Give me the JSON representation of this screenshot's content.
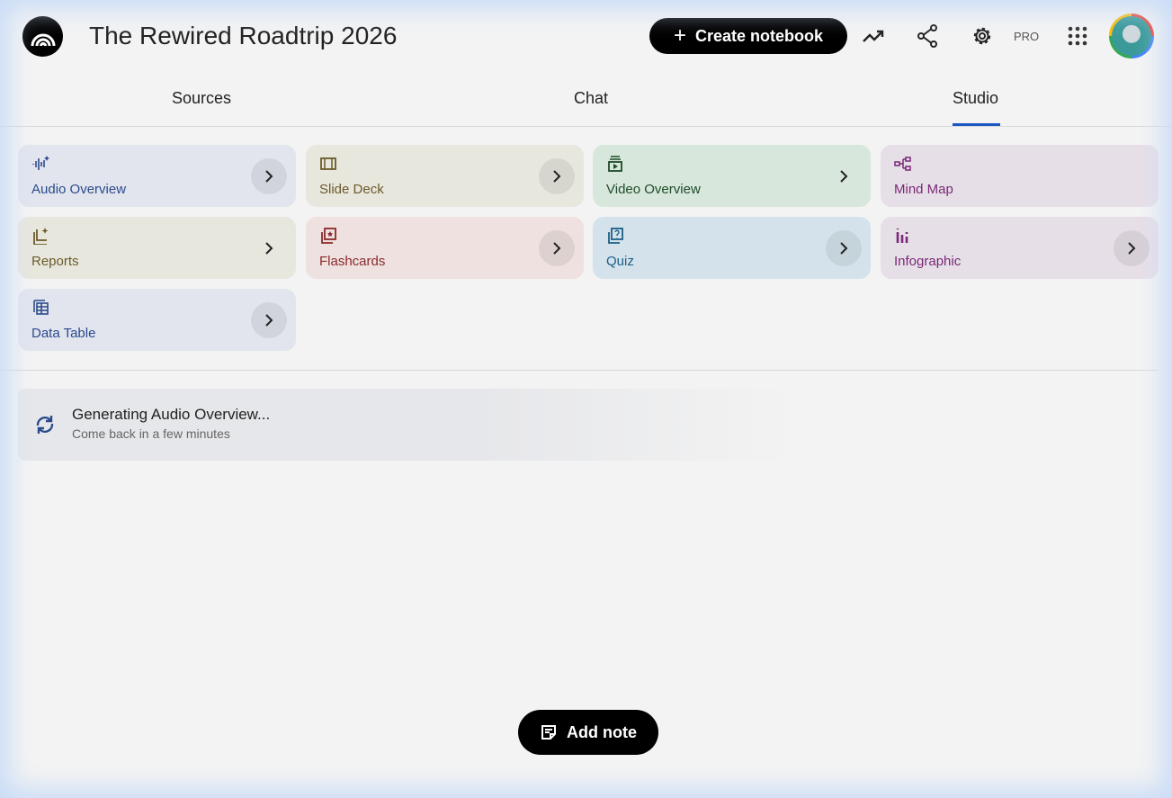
{
  "header": {
    "title": "The Rewired Roadtrip 2026",
    "create_label": "Create notebook",
    "pro_label": "PRO"
  },
  "tabs": [
    {
      "label": "Sources"
    },
    {
      "label": "Chat"
    },
    {
      "label": "Studio",
      "active": true
    }
  ],
  "studio": {
    "cards": [
      {
        "label": "Audio Overview",
        "icon": "audio-sparkle-icon",
        "bg": "#e2e5ee",
        "color": "#2a4a8c"
      },
      {
        "label": "Slide Deck",
        "icon": "slides-icon",
        "bg": "#e8e7de",
        "color": "#6a5a28"
      },
      {
        "label": "Video Overview",
        "icon": "video-icon",
        "bg": "#d8e7db",
        "color": "#1e4b2a"
      },
      {
        "label": "Mind Map",
        "icon": "mind-map-icon",
        "bg": "#e7dfe7",
        "color": "#7a2878"
      },
      {
        "label": "Reports",
        "icon": "reports-icon",
        "bg": "#e8e7de",
        "color": "#6a5a28"
      },
      {
        "label": "Flashcards",
        "icon": "flashcards-icon",
        "bg": "#eee1df",
        "color": "#8a2a2a"
      },
      {
        "label": "Quiz",
        "icon": "quiz-icon",
        "bg": "#d4e3eb",
        "color": "#1d5e86"
      },
      {
        "label": "Infographic",
        "icon": "infographic-icon",
        "bg": "#e7dfe7",
        "color": "#7a2878"
      },
      {
        "label": "Data Table",
        "icon": "table-icon",
        "bg": "#e2e5ee",
        "color": "#2a4a8c"
      }
    ]
  },
  "generating": {
    "title": "Generating Audio Overview...",
    "subtitle": "Come back in a few minutes"
  },
  "add_note_label": "Add note",
  "accent": "#1a56c4"
}
